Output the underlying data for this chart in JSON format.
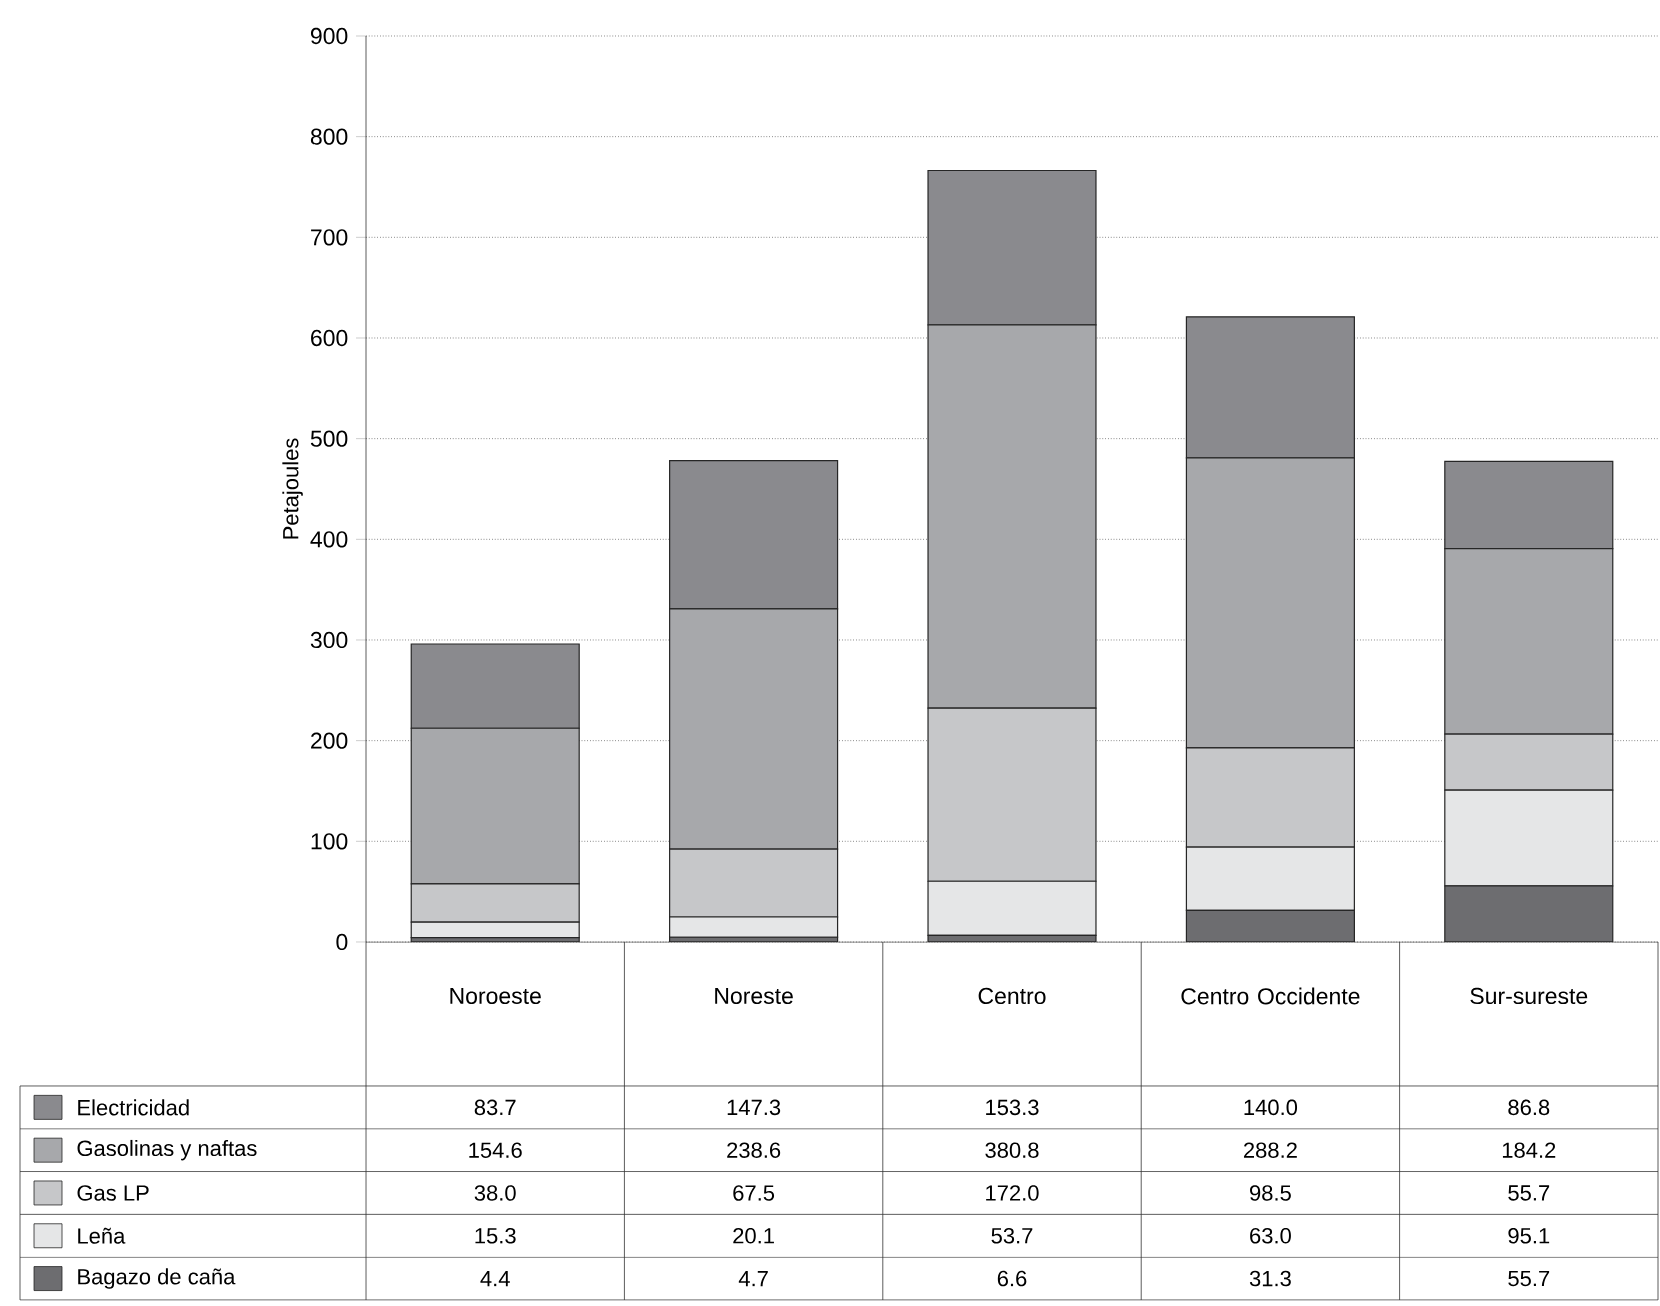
{
  "chart_data": {
    "type": "bar",
    "stacked": true,
    "ylabel": "Petajoules",
    "categories": [
      "Noroeste",
      "Noreste",
      "Centro",
      "Centro Occidente",
      "Sur-sureste"
    ],
    "series": [
      {
        "name": "Bagazo de caña",
        "color": "#6d6d70",
        "values": [
          4.4,
          4.7,
          6.6,
          31.3,
          55.7
        ],
        "value_labels": [
          "4.4",
          "4.7",
          "6.6",
          "31.3",
          "55.7"
        ]
      },
      {
        "name": "Leña",
        "color": "#e5e6e7",
        "values": [
          15.3,
          20.1,
          53.7,
          63.0,
          95.1
        ],
        "value_labels": [
          "15.3",
          "20.1",
          "53.7",
          "63.0",
          "95.1"
        ]
      },
      {
        "name": "Gas LP",
        "color": "#c6c7c9",
        "values": [
          38.0,
          67.5,
          172.0,
          98.5,
          55.7
        ],
        "value_labels": [
          "38.0",
          "67.5",
          "172.0",
          "98.5",
          "55.7"
        ]
      },
      {
        "name": "Gasolinas y naftas",
        "color": "#a7a8ab",
        "values": [
          154.6,
          238.6,
          380.8,
          288.2,
          184.2
        ],
        "value_labels": [
          "154.6",
          "238.6",
          "380.8",
          "288.2",
          "184.2"
        ]
      },
      {
        "name": "Electricidad",
        "color": "#8a8a8e",
        "values": [
          83.7,
          147.3,
          153.3,
          140.0,
          86.8
        ],
        "value_labels": [
          "83.7",
          "147.3",
          "153.3",
          "140.0",
          "86.8"
        ]
      }
    ],
    "ylim": [
      0,
      900
    ],
    "yticks": [
      0,
      100,
      200,
      300,
      400,
      500,
      600,
      700,
      800,
      900
    ],
    "grid": "y",
    "legend": "bottom"
  }
}
